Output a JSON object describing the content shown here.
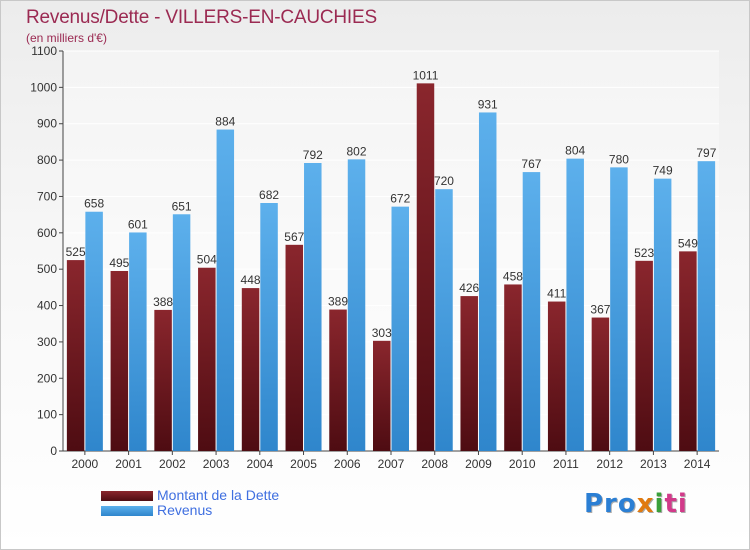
{
  "header": {
    "title": "Revenus/Dette - VILLERS-EN-CAUCHIES",
    "subtitle": "(en milliers d'€)"
  },
  "brand": {
    "logo_text": "Proxiti"
  },
  "colors": {
    "dette": "#7a1e24",
    "revenus": "#4aa3e3",
    "title": "#9b2a52",
    "legend_text": "#3f6fe0"
  },
  "chart_data": {
    "type": "bar",
    "title": "Revenus/Dette - VILLERS-EN-CAUCHIES",
    "subtitle": "(en milliers d'€)",
    "xlabel": "",
    "ylabel": "",
    "ylim": [
      0,
      1100
    ],
    "yticks": [
      0,
      100,
      200,
      300,
      400,
      500,
      600,
      700,
      800,
      900,
      1000,
      1100
    ],
    "grid": true,
    "legend_position": "bottom-left",
    "categories": [
      "2000",
      "2001",
      "2002",
      "2003",
      "2004",
      "2005",
      "2006",
      "2007",
      "2008",
      "2009",
      "2010",
      "2011",
      "2012",
      "2013",
      "2014"
    ],
    "series": [
      {
        "name": "Montant de la Dette",
        "color": "#7a1e24",
        "values": [
          525,
          495,
          388,
          504,
          448,
          567,
          389,
          303,
          1011,
          426,
          458,
          411,
          367,
          523,
          549
        ]
      },
      {
        "name": "Revenus",
        "color": "#4aa3e3",
        "values": [
          658,
          601,
          651,
          884,
          682,
          792,
          802,
          672,
          720,
          931,
          767,
          804,
          780,
          749,
          797
        ]
      }
    ]
  }
}
